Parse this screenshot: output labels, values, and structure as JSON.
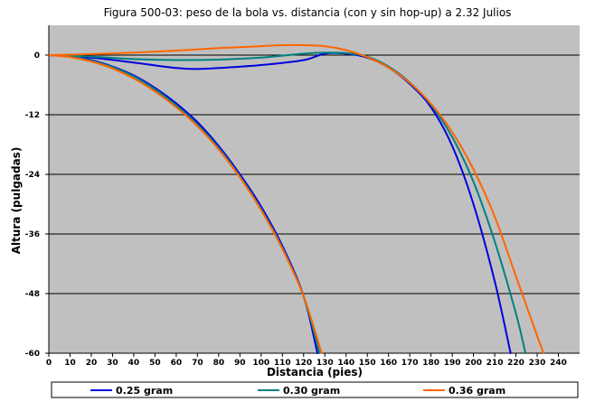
{
  "chart_data": {
    "type": "line",
    "title": "Figura 500-03: peso de la bola vs. distancia (con y sin hop-up) a 2.32 Julios",
    "xlabel": "Distancia (pies)",
    "ylabel": "Altura (pulgadas)",
    "xlim": [
      0,
      250
    ],
    "ylim": [
      -60,
      6
    ],
    "x_ticks": [
      "0",
      "10",
      "20",
      "30",
      "40",
      "50",
      "60",
      "70",
      "80",
      "90",
      "100",
      "110",
      "120",
      "130",
      "140",
      "150",
      "160",
      "170",
      "180",
      "190",
      "200",
      "210",
      "220",
      "230",
      "240"
    ],
    "x_tick_values": [
      0,
      10,
      20,
      30,
      40,
      50,
      60,
      70,
      80,
      90,
      100,
      110,
      120,
      130,
      140,
      150,
      160,
      170,
      180,
      190,
      200,
      210,
      220,
      230,
      240
    ],
    "y_ticks": [
      "0",
      "-12",
      "-24",
      "-36",
      "-48",
      "-60"
    ],
    "y_tick_values": [
      0,
      -12,
      -24,
      -36,
      -48,
      -60
    ],
    "grid": "horizontal",
    "plot_background": "#c0c0c0",
    "legend_position": "bottom",
    "series": [
      {
        "name": "0.25 gram",
        "color": "#0000dd",
        "curves": [
          {
            "x": [
              0,
              10,
              20,
              30,
              40,
              50,
              60,
              70,
              80,
              90,
              100,
              110,
              120,
              126.5
            ],
            "y": [
              0,
              -0.3,
              -1.0,
              -2.3,
              -4.1,
              -6.6,
              -9.7,
              -13.5,
              -18.3,
              -24.0,
              -30.5,
              -38.4,
              -48.5,
              -60
            ]
          },
          {
            "x": [
              0,
              20,
              40,
              60,
              70,
              80,
              100,
              120,
              130,
              140,
              150,
              160,
              170,
              180,
              190,
              200,
              210,
              217.5
            ],
            "y": [
              0,
              -0.5,
              -1.5,
              -2.6,
              -2.8,
              -2.6,
              -2.0,
              -1.0,
              0.3,
              0.3,
              -0.5,
              -2.5,
              -5.8,
              -10.5,
              -18.3,
              -30.0,
              -45.5,
              -60
            ]
          }
        ]
      },
      {
        "name": "0.30 gram",
        "color": "#008080",
        "curves": [
          {
            "x": [
              0,
              10,
              20,
              30,
              40,
              50,
              60,
              70,
              80,
              90,
              100,
              110,
              120,
              127.5
            ],
            "y": [
              0,
              -0.3,
              -1.1,
              -2.4,
              -4.3,
              -6.9,
              -10.1,
              -14.0,
              -18.7,
              -24.4,
              -31.0,
              -38.8,
              -48.6,
              -60
            ]
          },
          {
            "x": [
              0,
              20,
              40,
              60,
              80,
              100,
              120,
              130,
              140,
              150,
              160,
              170,
              180,
              190,
              200,
              210,
              220,
              224.5
            ],
            "y": [
              0,
              -0.3,
              -0.8,
              -1.0,
              -0.9,
              -0.5,
              0.3,
              0.5,
              0.4,
              -0.3,
              -2.3,
              -5.5,
              -10.0,
              -16.5,
              -25.5,
              -37.5,
              -52.0,
              -60
            ]
          }
        ]
      },
      {
        "name": "0.36 gram",
        "color": "#ff6600",
        "curves": [
          {
            "x": [
              0,
              10,
              20,
              30,
              40,
              50,
              60,
              70,
              80,
              90,
              100,
              110,
              120,
              128.5
            ],
            "y": [
              0,
              -0.4,
              -1.3,
              -2.7,
              -4.7,
              -7.3,
              -10.5,
              -14.3,
              -19.0,
              -24.6,
              -31.2,
              -39.0,
              -48.5,
              -60
            ]
          },
          {
            "x": [
              0,
              20,
              40,
              60,
              80,
              100,
              110,
              120,
              130,
              140,
              150,
              160,
              170,
              180,
              190,
              200,
              210,
              220,
              230,
              233
            ],
            "y": [
              0,
              0.2,
              0.5,
              0.9,
              1.4,
              1.8,
              2.0,
              2.0,
              1.8,
              1.0,
              -0.4,
              -2.5,
              -5.6,
              -9.8,
              -15.5,
              -23.0,
              -32.5,
              -44.5,
              -56.5,
              -60
            ]
          }
        ]
      }
    ]
  }
}
